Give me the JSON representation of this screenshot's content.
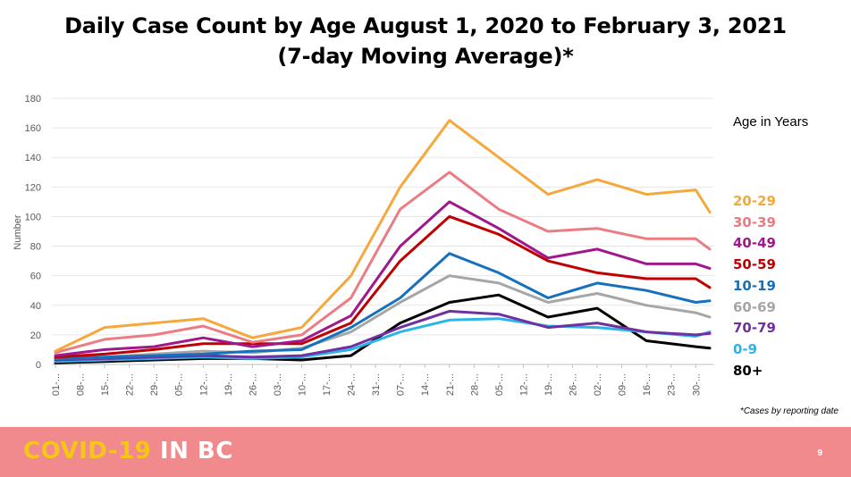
{
  "title_line1": "Daily Case Count by Age August 1, 2020 to February 3, 2021",
  "title_line2": "(7-day Moving Average)*",
  "footnote": "*Cases by reporting date",
  "footer": {
    "brand_a": "COVID-19",
    "brand_b": "IN BC",
    "page": "9"
  },
  "chart_data": {
    "type": "line",
    "title": "Daily Case Count by Age August 1, 2020 to February 3, 2021 (7-day Moving Average)*",
    "ylabel": "Number",
    "xlabel": "",
    "ylim": [
      0,
      180
    ],
    "yticks": [
      0,
      20,
      40,
      60,
      80,
      100,
      120,
      140,
      160,
      180
    ],
    "grid": "horizontal",
    "legend_title": "Age in Years",
    "legend_position": "right",
    "x_tick_labels": [
      "01-...",
      "08-...",
      "15-...",
      "22-...",
      "29-...",
      "05-...",
      "12-...",
      "19-...",
      "26-...",
      "03-...",
      "10-...",
      "17-...",
      "24-...",
      "31-...",
      "07-...",
      "14-...",
      "21-...",
      "28-...",
      "05-...",
      "12-...",
      "19-...",
      "26-...",
      "02-...",
      "09-...",
      "16-...",
      "23-...",
      "30-..."
    ],
    "x_tick_dates": [
      "2020-08-01",
      "2020-08-08",
      "2020-08-15",
      "2020-08-22",
      "2020-08-29",
      "2020-09-05",
      "2020-09-12",
      "2020-09-19",
      "2020-09-26",
      "2020-10-03",
      "2020-10-10",
      "2020-10-17",
      "2020-10-24",
      "2020-10-31",
      "2020-11-07",
      "2020-11-14",
      "2020-11-21",
      "2020-11-28",
      "2020-12-05",
      "2020-12-12",
      "2020-12-19",
      "2020-12-26",
      "2021-01-02",
      "2021-01-09",
      "2021-01-16",
      "2021-01-23",
      "2021-01-30"
    ],
    "x_dates": [
      "2020-08-01",
      "2020-08-15",
      "2020-08-29",
      "2020-09-12",
      "2020-09-26",
      "2020-10-10",
      "2020-10-24",
      "2020-11-07",
      "2020-11-21",
      "2020-12-05",
      "2020-12-19",
      "2021-01-02",
      "2021-01-16",
      "2021-01-30",
      "2021-02-03"
    ],
    "series": [
      {
        "name": "20-29",
        "color": "#f5a83c",
        "values": [
          9,
          25,
          28,
          31,
          18,
          25,
          60,
          120,
          165,
          140,
          115,
          125,
          115,
          118,
          103
        ]
      },
      {
        "name": "30-39",
        "color": "#ec7c84",
        "values": [
          8,
          17,
          20,
          26,
          15,
          20,
          45,
          105,
          130,
          105,
          90,
          92,
          85,
          85,
          78
        ]
      },
      {
        "name": "40-49",
        "color": "#a0188c",
        "values": [
          6,
          10,
          12,
          18,
          12,
          16,
          33,
          80,
          110,
          92,
          72,
          78,
          68,
          68,
          65
        ]
      },
      {
        "name": "50-59",
        "color": "#c00000",
        "values": [
          5,
          7,
          10,
          14,
          14,
          14,
          28,
          70,
          100,
          88,
          70,
          62,
          58,
          58,
          52
        ]
      },
      {
        "name": "10-19",
        "color": "#1570bd",
        "values": [
          4,
          5,
          6,
          7,
          9,
          10,
          25,
          45,
          75,
          62,
          45,
          55,
          50,
          42,
          43
        ]
      },
      {
        "name": "60-69",
        "color": "#a6a6a6",
        "values": [
          4,
          5,
          7,
          9,
          8,
          11,
          22,
          42,
          60,
          55,
          42,
          48,
          40,
          35,
          32
        ]
      },
      {
        "name": "70-79",
        "color": "#7030a0",
        "values": [
          3,
          4,
          5,
          6,
          5,
          6,
          12,
          25,
          36,
          34,
          25,
          28,
          22,
          20,
          21
        ]
      },
      {
        "name": "0-9",
        "color": "#2ab5e9",
        "values": [
          2,
          3,
          4,
          5,
          4,
          5,
          10,
          22,
          30,
          31,
          26,
          25,
          22,
          19,
          22
        ]
      },
      {
        "name": "80+",
        "color": "#000000",
        "values": [
          1,
          2,
          3,
          4,
          4,
          3,
          6,
          28,
          42,
          47,
          32,
          38,
          16,
          12,
          11
        ]
      }
    ]
  }
}
